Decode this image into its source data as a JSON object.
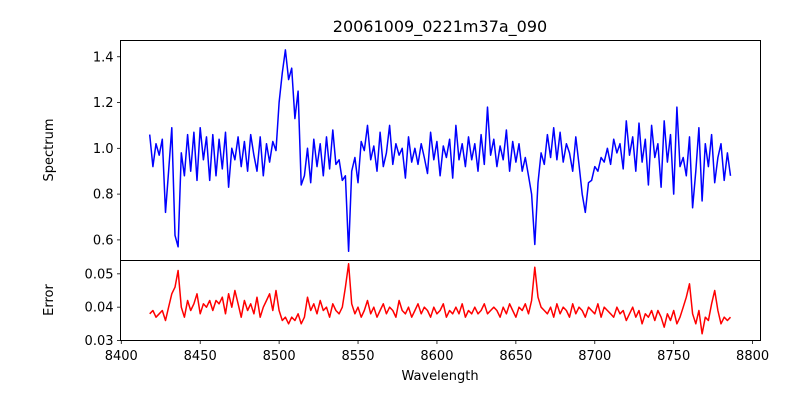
{
  "chart_data": {
    "type": "line",
    "title": "20061009_0221m37a_090",
    "xlabel": "Wavelength",
    "xlim": [
      8399.5,
      8805
    ],
    "xticks": [
      "8400",
      "8450",
      "8500",
      "8550",
      "8600",
      "8650",
      "8700",
      "8750",
      "8800"
    ],
    "x_start": 8418,
    "x_step": 2,
    "panels": [
      {
        "name": "spectrum",
        "ylabel": "Spectrum",
        "ylim": [
          0.51,
          1.471
        ],
        "yticks": [
          "0.6",
          "0.8",
          "1.0",
          "1.2",
          "1.4"
        ],
        "color": "#0000ff",
        "values": [
          1.06,
          0.92,
          1.02,
          0.97,
          1.04,
          0.72,
          0.9,
          1.09,
          0.62,
          0.57,
          0.98,
          0.88,
          1.06,
          0.9,
          1.07,
          0.86,
          1.09,
          0.95,
          1.05,
          0.86,
          1.06,
          0.88,
          1.04,
          0.91,
          1.07,
          0.83,
          1.0,
          0.95,
          1.05,
          0.92,
          1.03,
          0.9,
          1.06,
          0.97,
          0.9,
          1.05,
          0.88,
          1.02,
          0.94,
          1.03,
          0.99,
          1.2,
          1.33,
          1.43,
          1.3,
          1.35,
          1.13,
          1.25,
          0.84,
          0.88,
          1.0,
          0.85,
          1.04,
          0.92,
          1.02,
          0.88,
          1.05,
          0.91,
          1.08,
          0.93,
          0.95,
          0.86,
          0.88,
          0.55,
          0.9,
          0.96,
          0.85,
          1.03,
          0.99,
          1.1,
          0.95,
          1.01,
          0.9,
          1.07,
          0.92,
          0.98,
          1.1,
          0.93,
          1.02,
          0.97,
          1.0,
          0.87,
          1.05,
          0.94,
          1.0,
          0.93,
          1.02,
          0.96,
          0.89,
          1.07,
          0.95,
          1.03,
          0.88,
          1.01,
          0.96,
          1.04,
          0.87,
          1.1,
          0.95,
          1.02,
          0.92,
          1.05,
          0.95,
          1.02,
          0.9,
          1.06,
          0.93,
          1.18,
          0.97,
          1.04,
          0.92,
          1.01,
          0.95,
          1.08,
          0.9,
          1.03,
          0.94,
          1.02,
          0.9,
          0.96,
          0.88,
          0.8,
          0.58,
          0.85,
          0.98,
          0.93,
          1.06,
          0.96,
          1.09,
          0.95,
          1.07,
          0.94,
          1.02,
          0.98,
          0.9,
          1.05,
          0.93,
          0.8,
          0.72,
          0.85,
          0.86,
          0.92,
          0.9,
          0.96,
          0.94,
          1.0,
          0.93,
          1.04,
          0.98,
          1.02,
          0.91,
          1.12,
          0.97,
          1.05,
          0.9,
          1.11,
          0.94,
          1.04,
          0.84,
          1.1,
          0.96,
          1.02,
          0.83,
          1.12,
          0.94,
          1.06,
          0.8,
          1.18,
          0.92,
          0.96,
          0.88,
          1.05,
          0.74,
          0.9,
          1.09,
          0.77,
          1.02,
          0.92,
          1.06,
          0.85,
          0.96,
          1.02,
          0.86,
          0.98,
          0.88
        ]
      },
      {
        "name": "error",
        "ylabel": "Error",
        "ylim": [
          0.03,
          0.054
        ],
        "yticks": [
          "0.03",
          "0.04",
          "0.05"
        ],
        "color": "#ff0000",
        "values": [
          0.038,
          0.039,
          0.037,
          0.038,
          0.039,
          0.036,
          0.04,
          0.044,
          0.046,
          0.051,
          0.04,
          0.037,
          0.042,
          0.039,
          0.041,
          0.044,
          0.038,
          0.041,
          0.04,
          0.042,
          0.039,
          0.042,
          0.041,
          0.043,
          0.038,
          0.044,
          0.04,
          0.045,
          0.041,
          0.037,
          0.042,
          0.039,
          0.041,
          0.038,
          0.043,
          0.037,
          0.04,
          0.042,
          0.044,
          0.039,
          0.045,
          0.039,
          0.036,
          0.037,
          0.035,
          0.037,
          0.036,
          0.038,
          0.035,
          0.037,
          0.043,
          0.039,
          0.041,
          0.038,
          0.042,
          0.039,
          0.04,
          0.037,
          0.041,
          0.039,
          0.038,
          0.04,
          0.046,
          0.053,
          0.041,
          0.038,
          0.04,
          0.037,
          0.039,
          0.042,
          0.038,
          0.04,
          0.037,
          0.039,
          0.041,
          0.038,
          0.04,
          0.039,
          0.037,
          0.042,
          0.039,
          0.038,
          0.04,
          0.037,
          0.039,
          0.041,
          0.038,
          0.04,
          0.039,
          0.037,
          0.04,
          0.038,
          0.039,
          0.041,
          0.037,
          0.039,
          0.038,
          0.04,
          0.038,
          0.041,
          0.037,
          0.039,
          0.038,
          0.04,
          0.038,
          0.039,
          0.041,
          0.038,
          0.039,
          0.04,
          0.039,
          0.037,
          0.04,
          0.038,
          0.041,
          0.039,
          0.037,
          0.04,
          0.039,
          0.041,
          0.038,
          0.042,
          0.052,
          0.043,
          0.04,
          0.039,
          0.038,
          0.04,
          0.037,
          0.041,
          0.038,
          0.04,
          0.039,
          0.037,
          0.041,
          0.038,
          0.04,
          0.039,
          0.037,
          0.04,
          0.039,
          0.038,
          0.041,
          0.037,
          0.04,
          0.039,
          0.038,
          0.037,
          0.04,
          0.038,
          0.039,
          0.036,
          0.038,
          0.04,
          0.037,
          0.039,
          0.035,
          0.038,
          0.037,
          0.039,
          0.036,
          0.039,
          0.037,
          0.034,
          0.038,
          0.036,
          0.039,
          0.035,
          0.037,
          0.04,
          0.043,
          0.047,
          0.038,
          0.035,
          0.039,
          0.032,
          0.037,
          0.036,
          0.041,
          0.045,
          0.039,
          0.035,
          0.037,
          0.036,
          0.037
        ]
      }
    ]
  }
}
